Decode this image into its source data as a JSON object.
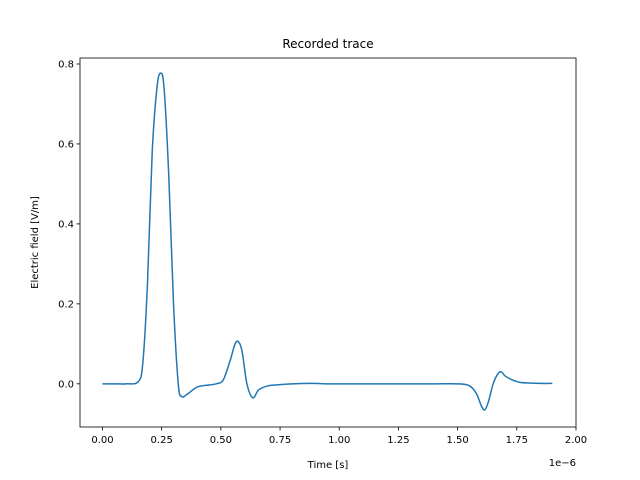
{
  "chart_data": {
    "type": "line",
    "title": "Recorded trace",
    "xlabel": "Time [s]",
    "ylabel": "Electric field [V/m]",
    "x_offset_label": "1e−6",
    "xlim": [
      -0.095,
      2.0
    ],
    "ylim": [
      -0.108,
      0.815
    ],
    "xticks": [
      0.0,
      0.25,
      0.5,
      0.75,
      1.0,
      1.25,
      1.5,
      1.75,
      2.0
    ],
    "xtick_labels": [
      "0.00",
      "0.25",
      "0.50",
      "0.75",
      "1.00",
      "1.25",
      "1.50",
      "1.75",
      "2.00"
    ],
    "yticks": [
      0.0,
      0.2,
      0.4,
      0.6,
      0.8
    ],
    "ytick_labels": [
      "0.0",
      "0.2",
      "0.4",
      "0.6",
      "0.8"
    ],
    "grid": false,
    "legend": "none",
    "series": [
      {
        "color": "#1f77b4",
        "x": [
          0.0,
          0.05,
          0.1,
          0.15,
          0.17,
          0.19,
          0.21,
          0.23,
          0.245,
          0.26,
          0.28,
          0.3,
          0.32,
          0.335,
          0.36,
          0.4,
          0.45,
          0.48,
          0.51,
          0.54,
          0.56,
          0.575,
          0.59,
          0.61,
          0.635,
          0.66,
          0.7,
          0.75,
          0.8,
          0.88,
          0.95,
          1.0,
          1.1,
          1.2,
          1.3,
          1.4,
          1.5,
          1.55,
          1.58,
          1.6,
          1.615,
          1.63,
          1.65,
          1.67,
          1.685,
          1.7,
          1.73,
          1.76,
          1.8,
          1.85,
          1.9
        ],
        "y": [
          0.0,
          0.0,
          0.0,
          0.005,
          0.05,
          0.25,
          0.58,
          0.74,
          0.777,
          0.74,
          0.52,
          0.2,
          0.0,
          -0.032,
          -0.025,
          -0.008,
          -0.003,
          0.0,
          0.01,
          0.06,
          0.1,
          0.105,
          0.08,
          0.0,
          -0.035,
          -0.015,
          -0.005,
          -0.002,
          0.0,
          0.001,
          0.0,
          0.0,
          0.0,
          0.0,
          0.0,
          0.0,
          0.0,
          -0.005,
          -0.025,
          -0.055,
          -0.065,
          -0.045,
          0.0,
          0.025,
          0.03,
          0.02,
          0.01,
          0.004,
          0.002,
          0.001,
          0.001
        ]
      }
    ]
  }
}
